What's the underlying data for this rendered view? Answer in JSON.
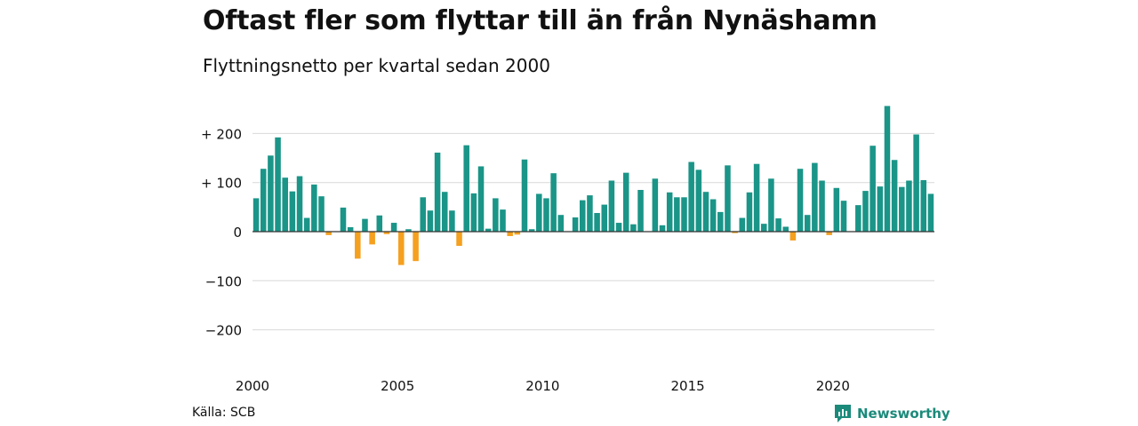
{
  "title": "Oftast fler som flyttar till än från Nynäshamn",
  "subtitle": "Flyttningsnetto per kvartal sedan 2000",
  "source": "Källa: SCB",
  "brand": {
    "label": "Newsworthy",
    "icon": "newsworthy-logo-icon"
  },
  "colors": {
    "positive": "#1a9588",
    "negative": "#f5a01e",
    "grid": "#d9d9d9",
    "zero": "#333333"
  },
  "chart_data": {
    "type": "bar",
    "title": "Oftast fler som flyttar till än från Nynäshamn",
    "subtitle": "Flyttningsnetto per kvartal sedan 2000",
    "xlabel": "",
    "ylabel": "",
    "ylim": [
      -250,
      270
    ],
    "grid": true,
    "y_ticks": [
      {
        "value": 200,
        "label": "+ 200"
      },
      {
        "value": 100,
        "label": "+ 100"
      },
      {
        "value": 0,
        "label": "0"
      },
      {
        "value": -100,
        "label": "−100"
      },
      {
        "value": -200,
        "label": "−200"
      }
    ],
    "x_ticks": [
      "2000",
      "2005",
      "2010",
      "2015",
      "2020"
    ],
    "start": "2000 Q1",
    "frequency": "quarterly",
    "values": [
      68,
      128,
      155,
      192,
      110,
      82,
      113,
      28,
      96,
      72,
      -7,
      0,
      49,
      9,
      -55,
      26,
      -26,
      33,
      -5,
      18,
      -68,
      5,
      -60,
      70,
      43,
      161,
      81,
      43,
      -29,
      176,
      78,
      133,
      6,
      68,
      45,
      -9,
      -6,
      147,
      5,
      77,
      68,
      119,
      34,
      0,
      29,
      64,
      74,
      38,
      55,
      104,
      18,
      120,
      15,
      85,
      0,
      108,
      13,
      80,
      70,
      70,
      142,
      126,
      81,
      66,
      40,
      135,
      -3,
      28,
      80,
      138,
      16,
      108,
      27,
      10,
      -18,
      128,
      34,
      140,
      104,
      -7,
      89,
      63,
      0,
      54,
      83,
      175,
      92,
      256,
      146,
      91,
      104,
      198,
      105,
      77
    ]
  }
}
